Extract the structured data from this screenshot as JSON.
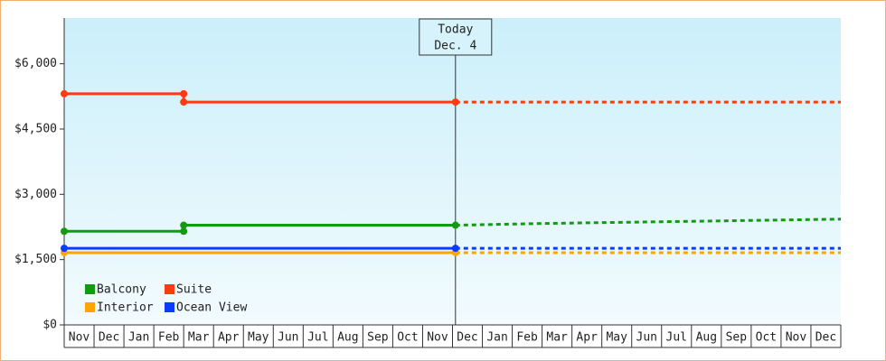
{
  "chart_data": {
    "type": "line",
    "categories": [
      "Nov",
      "Dec",
      "Jan",
      "Feb",
      "Mar",
      "Apr",
      "May",
      "Jun",
      "Jul",
      "Aug",
      "Sep",
      "Oct",
      "Nov",
      "Dec",
      "Jan",
      "Feb",
      "Mar",
      "Apr",
      "May",
      "Jun",
      "Jul",
      "Aug",
      "Sep",
      "Oct",
      "Nov",
      "Dec"
    ],
    "xlim": [
      0,
      26
    ],
    "ylim": [
      0,
      7050
    ],
    "yticks": [
      {
        "value": 0,
        "label": "$0"
      },
      {
        "value": 1500,
        "label": "$1,500"
      },
      {
        "value": 3000,
        "label": "$3,000"
      },
      {
        "value": 4500,
        "label": "$4,500"
      },
      {
        "value": 6000,
        "label": "$6,000"
      }
    ],
    "today": {
      "label": "Today",
      "date": "Dec. 4",
      "x": 13.1
    },
    "series": [
      {
        "name": "Balcony",
        "color": "#129a12",
        "x": [
          0,
          4,
          4,
          13.1
        ],
        "values": [
          2150,
          2150,
          2290,
          2290
        ],
        "projection_x": [
          13.1,
          16,
          20,
          26
        ],
        "projection_values": [
          2290,
          2330,
          2370,
          2430
        ]
      },
      {
        "name": "Suite",
        "color": "#ff3a0e",
        "x": [
          0,
          4,
          4,
          13.1
        ],
        "values": [
          5310,
          5310,
          5120,
          5120
        ],
        "projection_x": [
          13.1,
          26
        ],
        "projection_values": [
          5120,
          5120
        ]
      },
      {
        "name": "Interior",
        "color": "#ffa500",
        "x": [
          0,
          13.1
        ],
        "values": [
          1660,
          1660
        ],
        "projection_x": [
          13.1,
          26
        ],
        "projection_values": [
          1660,
          1660
        ]
      },
      {
        "name": "Ocean View",
        "color": "#0a3cff",
        "x": [
          0,
          13.1
        ],
        "values": [
          1760,
          1760
        ],
        "projection_x": [
          13.1,
          26
        ],
        "projection_values": [
          1760,
          1760
        ]
      }
    ]
  }
}
